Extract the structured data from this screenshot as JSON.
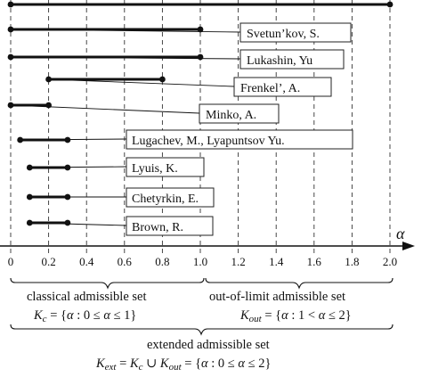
{
  "axis": {
    "symbol": "α",
    "ticks": [
      "0",
      "0.2",
      "0.4",
      "0.6",
      "0.8",
      "1.0",
      "1.2",
      "1.4",
      "1.6",
      "1.8",
      "2.0"
    ],
    "tick_values": [
      0,
      0.2,
      0.4,
      0.6,
      0.8,
      1.0,
      1.2,
      1.4,
      1.6,
      1.8,
      2.0
    ]
  },
  "intervals": [
    {
      "label": "",
      "start": 0.0,
      "end": 2.0
    },
    {
      "label": "Svetun’kov, S.",
      "start": 0.0,
      "end": 1.0
    },
    {
      "label": "Lukashin, Yu",
      "start": 0.0,
      "end": 1.0
    },
    {
      "label": "Frenkel’, A.",
      "start": 0.2,
      "end": 0.8
    },
    {
      "label": "Minko, A.",
      "start": 0.0,
      "end": 0.2
    },
    {
      "label": "Lugachev, M., Lyapuntsov Yu.",
      "start": 0.05,
      "end": 0.3
    },
    {
      "label": "Lyuis, K.",
      "start": 0.1,
      "end": 0.3
    },
    {
      "label": "Chetyrkin, E.",
      "start": 0.1,
      "end": 0.3
    },
    {
      "label": "Brown, R.",
      "start": 0.1,
      "end": 0.3
    }
  ],
  "sets": {
    "classical_title": "classical admissible set",
    "classical_formula": "K_c = {α : 0 ≤ α ≤ 1}",
    "outlimit_title": "out-of-limit admissible set",
    "outlimit_formula": "K_out = {α : 1 < α ≤ 2}",
    "extended_title": "extended admissible set",
    "extended_formula": "K_ext = K_c ∪ K_out = {α : 0 ≤ α ≤ 2}"
  }
}
